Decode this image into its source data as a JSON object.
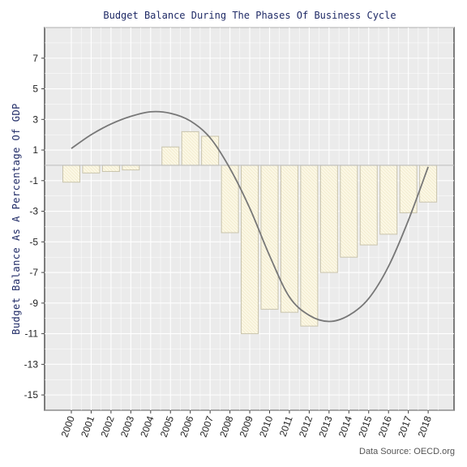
{
  "chart_data": {
    "type": "bar",
    "title": "Budget Balance During The Phases Of Business Cycle",
    "xlabel": "",
    "ylabel": "Budget Balance As A Percentage Of GDP",
    "source": "Data Source: OECD.org",
    "categories": [
      "2000",
      "2001",
      "2002",
      "2003",
      "2004",
      "2005",
      "2006",
      "2007",
      "2008",
      "2009",
      "2010",
      "2011",
      "2012",
      "2013",
      "2014",
      "2015",
      "2016",
      "2017",
      "2018"
    ],
    "values": [
      -1.1,
      -0.5,
      -0.4,
      -0.3,
      0.0,
      1.2,
      2.2,
      1.9,
      -4.4,
      -11.0,
      -9.4,
      -9.6,
      -10.5,
      -7.0,
      -6.0,
      -5.2,
      -4.5,
      -3.1,
      -2.4
    ],
    "trend": [
      1.1,
      2.0,
      2.7,
      3.2,
      3.5,
      3.4,
      2.9,
      1.8,
      -0.2,
      -2.8,
      -5.9,
      -8.6,
      -9.8,
      -10.2,
      -9.8,
      -8.7,
      -6.6,
      -3.6,
      -0.1
    ],
    "ylim": [
      -16,
      9
    ],
    "yticks": [
      7,
      5,
      3,
      1,
      -1,
      -3,
      -5,
      -7,
      -9,
      -11,
      -13,
      -15
    ],
    "grid": true,
    "colors": {
      "panel": "#ebebeb",
      "grid": "#ffffff",
      "bar_fill": "#fbf7e4",
      "bar_stroke": "#c9c4ad",
      "trend": "#777777",
      "zero_line": "#bdbdbd",
      "title": "#1f2a66"
    }
  }
}
